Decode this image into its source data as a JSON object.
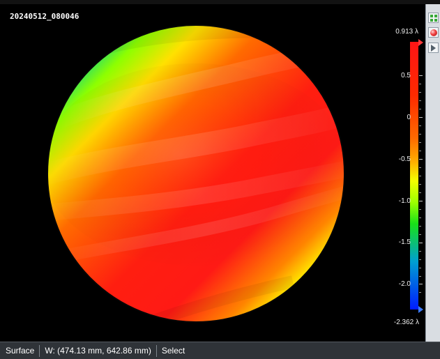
{
  "plot": {
    "timestamp": "20240512_080046"
  },
  "colorbar": {
    "max_label": "0.913 λ",
    "labels": [
      {
        "value": "0.5"
      },
      {
        "value": "0"
      },
      {
        "value": "-0.5"
      },
      {
        "value": "-1.0"
      },
      {
        "value": "-1.5"
      },
      {
        "value": "-2.0"
      }
    ],
    "min_label": "-2.362 λ"
  },
  "status": {
    "mode": "Surface",
    "dimensions": "W: (474.13 mm, 642.86 mm)",
    "action": "Select"
  },
  "icons": {
    "tool1": "grid-icon",
    "tool2": "sphere-icon",
    "tool3": "play-icon"
  }
}
